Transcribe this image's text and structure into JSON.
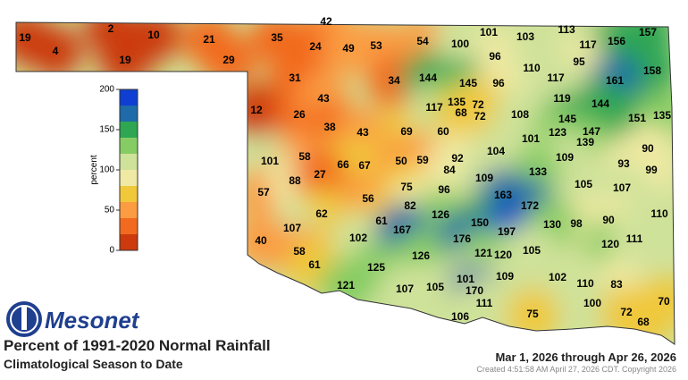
{
  "logo": "Mesonet",
  "title": "Percent of 1991-2020 Normal Rainfall",
  "subtitle": "Climatological Season to Date",
  "date_range": "Mar 1, 2026 through Apr 26, 2026",
  "created": "Created 4:51:58 AM April 27, 2026 CDT. Copyright 2026",
  "legend": {
    "label": "percent",
    "ylim": [
      0,
      200
    ],
    "yticks": [
      0,
      50,
      100,
      150,
      200
    ],
    "bins": [
      0,
      20,
      40,
      60,
      80,
      100,
      120,
      140,
      160,
      180,
      200
    ],
    "colors": [
      "#cc3a0e",
      "#f26a1f",
      "#fb9c42",
      "#f0c83a",
      "#efe9a3",
      "#cfe29a",
      "#86cc64",
      "#2ea652",
      "#1f6aa8",
      "#0e3fd2"
    ]
  },
  "stations": [
    19,
    4,
    2,
    10,
    19,
    21,
    29,
    42,
    35,
    24,
    49,
    53,
    54,
    100,
    101,
    103,
    113,
    117,
    156,
    157,
    158,
    96,
    110,
    95,
    161,
    31,
    34,
    144,
    145,
    96,
    117,
    119,
    144,
    151,
    135,
    12,
    26,
    43,
    38,
    43,
    69,
    60,
    117,
    135,
    72,
    68,
    72,
    108,
    145,
    101,
    123,
    147,
    139,
    90,
    101,
    58,
    66,
    67,
    50,
    59,
    92,
    84,
    104,
    109,
    93,
    99,
    57,
    88,
    27,
    56,
    75,
    96,
    109,
    133,
    105,
    107,
    82,
    163,
    172,
    62,
    61,
    126,
    150,
    98,
    90,
    110,
    107,
    102,
    167,
    176,
    197,
    130,
    120,
    111,
    40,
    58,
    126,
    121,
    120,
    105,
    61,
    125,
    109,
    102,
    110,
    83,
    121,
    107,
    105,
    101,
    170,
    111,
    100,
    70,
    106,
    75,
    72,
    68
  ]
}
